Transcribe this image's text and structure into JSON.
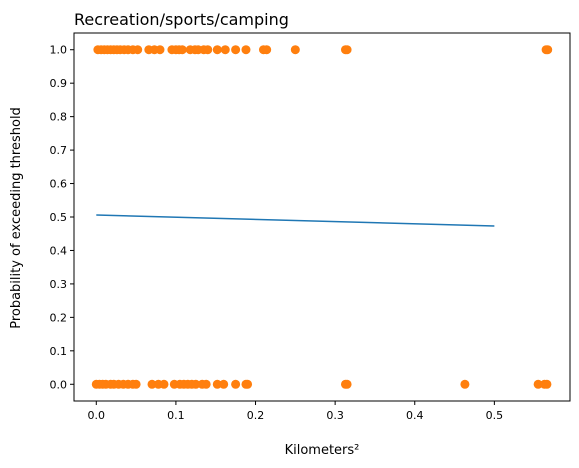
{
  "chart_data": {
    "type": "scatter",
    "title": "Recreation/sports/camping",
    "xlabel": "Kilometers²",
    "ylabel": "Probability of exceeding threshold",
    "xlim": [
      -0.028,
      0.595
    ],
    "ylim": [
      -0.05,
      1.05
    ],
    "xticks": [
      0.0,
      0.1,
      0.2,
      0.3,
      0.4,
      0.5
    ],
    "xtick_labels": [
      "0.0",
      "0.1",
      "0.2",
      "0.3",
      "0.4",
      "0.5"
    ],
    "yticks": [
      0.0,
      0.1,
      0.2,
      0.3,
      0.4,
      0.5,
      0.6,
      0.7,
      0.8,
      0.9,
      1.0
    ],
    "ytick_labels": [
      "0.0",
      "0.1",
      "0.2",
      "0.3",
      "0.4",
      "0.5",
      "0.6",
      "0.7",
      "0.8",
      "0.9",
      "1.0"
    ],
    "grid": false,
    "colors": {
      "points": "#ff7f0e",
      "line": "#1f77b4"
    },
    "series": [
      {
        "type": "scatter",
        "x": [
          0.002,
          0.006,
          0.01,
          0.014,
          0.018,
          0.022,
          0.026,
          0.03,
          0.035,
          0.04,
          0.046,
          0.052,
          0.066,
          0.073,
          0.08,
          0.095,
          0.1,
          0.104,
          0.108,
          0.118,
          0.124,
          0.128,
          0.135,
          0.14,
          0.152,
          0.162,
          0.175,
          0.188,
          0.21,
          0.214,
          0.25,
          0.313,
          0.315,
          0.565,
          0.567
        ],
        "y": [
          1,
          1,
          1,
          1,
          1,
          1,
          1,
          1,
          1,
          1,
          1,
          1,
          1,
          1,
          1,
          1,
          1,
          1,
          1,
          1,
          1,
          1,
          1,
          1,
          1,
          1,
          1,
          1,
          1,
          1,
          1,
          1,
          1,
          1,
          1
        ]
      },
      {
        "type": "scatter",
        "x": [
          0.0,
          0.004,
          0.008,
          0.012,
          0.018,
          0.022,
          0.028,
          0.034,
          0.04,
          0.046,
          0.05,
          0.07,
          0.078,
          0.085,
          0.098,
          0.105,
          0.11,
          0.115,
          0.12,
          0.125,
          0.133,
          0.138,
          0.152,
          0.16,
          0.175,
          0.188,
          0.19,
          0.313,
          0.315,
          0.463,
          0.555,
          0.563,
          0.566
        ],
        "y": [
          0,
          0,
          0,
          0,
          0,
          0,
          0,
          0,
          0,
          0,
          0,
          0,
          0,
          0,
          0,
          0,
          0,
          0,
          0,
          0,
          0,
          0,
          0,
          0,
          0,
          0,
          0,
          0,
          0,
          0,
          0,
          0,
          0
        ]
      },
      {
        "type": "line",
        "x": [
          0.0,
          0.5
        ],
        "y": [
          0.506,
          0.473
        ]
      }
    ]
  }
}
